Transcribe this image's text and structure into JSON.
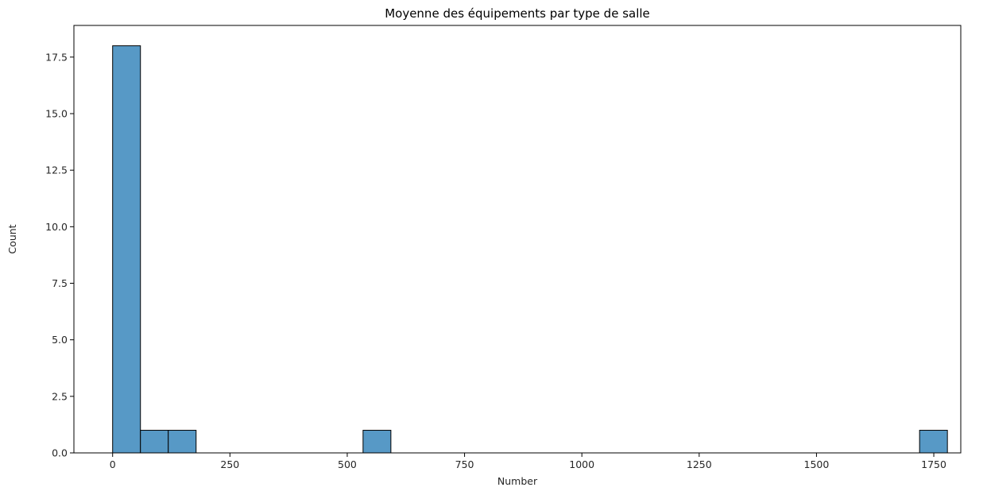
{
  "chart_data": {
    "type": "bar",
    "title": "Moyenne des équipements par type de salle",
    "xlabel": "Number",
    "ylabel": "Count",
    "xlim": [
      -82.5,
      1807.5
    ],
    "ylim": [
      0,
      18.9
    ],
    "xticks": [
      0,
      250,
      500,
      750,
      1000,
      1250,
      1500,
      1750
    ],
    "yticks": [
      0.0,
      2.5,
      5.0,
      7.5,
      10.0,
      12.5,
      15.0,
      17.5
    ],
    "bin_width": 59.3,
    "bins": [
      {
        "start": 0,
        "end": 59.3,
        "count": 18
      },
      {
        "start": 59.3,
        "end": 118.6,
        "count": 1
      },
      {
        "start": 118.6,
        "end": 177.9,
        "count": 1
      },
      {
        "start": 533.7,
        "end": 593.0,
        "count": 1
      },
      {
        "start": 1719.7,
        "end": 1779.0,
        "count": 1
      }
    ],
    "grid": false,
    "colors": {
      "bar_fill": "#5799c6",
      "bar_edge": "#000000"
    }
  }
}
